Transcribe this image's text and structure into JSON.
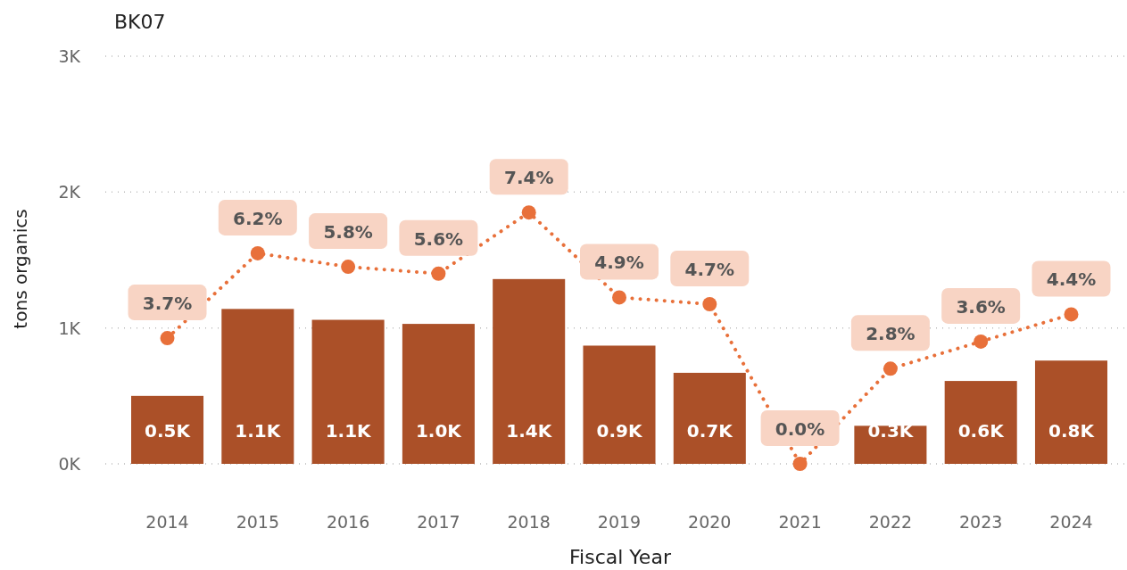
{
  "chart_data": {
    "type": "bar",
    "title": "BK07",
    "xlabel": "Fiscal Year",
    "ylabel": "tons organics",
    "categories": [
      "2014",
      "2015",
      "2016",
      "2017",
      "2018",
      "2019",
      "2020",
      "2021",
      "2022",
      "2023",
      "2024"
    ],
    "ylim": [
      0,
      3000
    ],
    "yticks": [
      {
        "value": 0,
        "label": "0K"
      },
      {
        "value": 1000,
        "label": "1K"
      },
      {
        "value": 2000,
        "label": "2K"
      },
      {
        "value": 3000,
        "label": "3K"
      }
    ],
    "y2lim": [
      0,
      12
    ],
    "grid": "y",
    "series": [
      {
        "color": "#ab5028",
        "values": [
          500,
          1140,
          1060,
          1030,
          1360,
          870,
          670,
          null,
          280,
          610,
          760
        ],
        "value_labels": [
          "0.5K",
          "1.1K",
          "1.1K",
          "1.0K",
          "1.4K",
          "0.9K",
          "0.7K",
          null,
          "0.3K",
          "0.6K",
          "0.8K"
        ]
      },
      {
        "type": "line",
        "axis": "y2",
        "color": "#e8703a",
        "marker": "circle",
        "line_style": "dotted",
        "values": [
          3.7,
          6.2,
          5.8,
          5.6,
          7.4,
          4.9,
          4.7,
          0.0,
          2.8,
          3.6,
          4.4
        ],
        "value_labels": [
          "3.7%",
          "6.2%",
          "5.8%",
          "5.6%",
          "7.4%",
          "4.9%",
          "4.7%",
          "0.0%",
          "2.8%",
          "3.6%",
          "4.4%"
        ]
      }
    ]
  }
}
